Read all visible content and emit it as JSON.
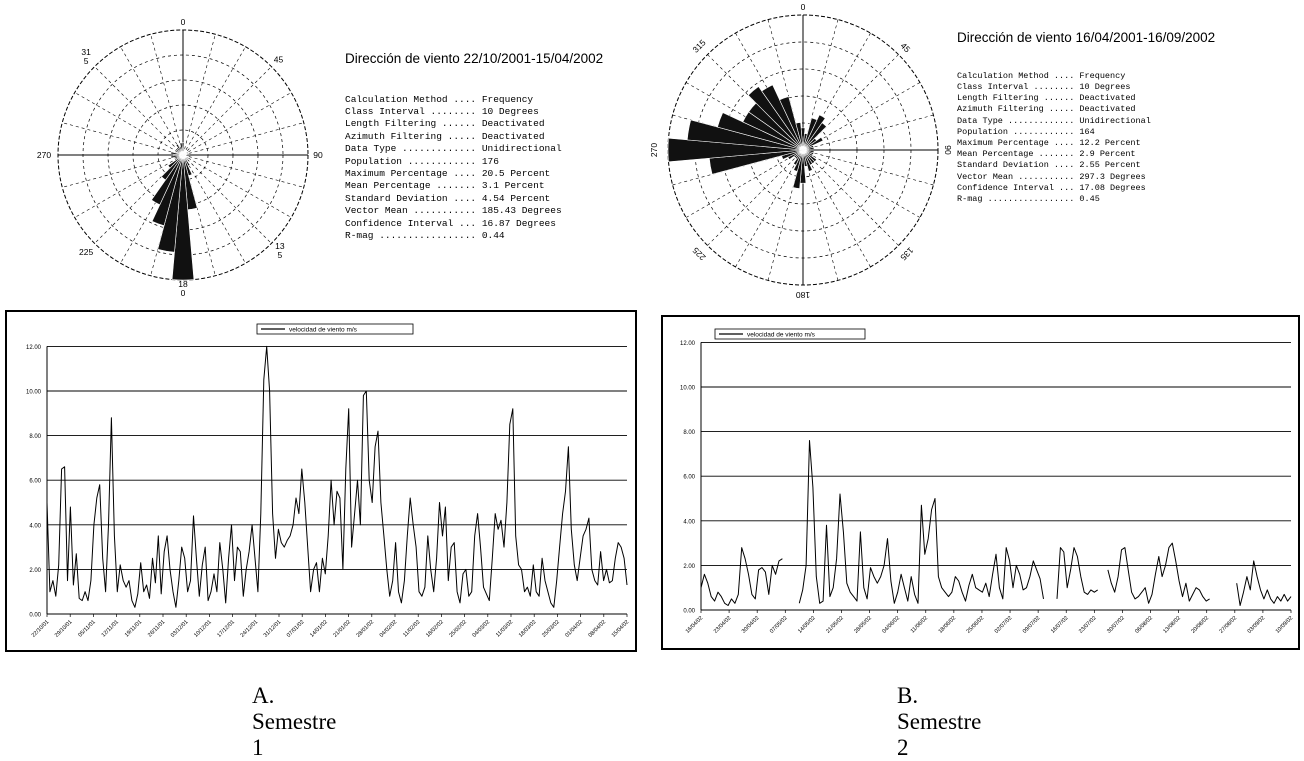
{
  "panels": [
    {
      "caption": "A. Semestre 1",
      "rose": {
        "labels": {
          "n": "0",
          "ne": "45",
          "e": "90",
          "se": "13\n5",
          "s": "18\n0",
          "sw": "225",
          "w": "270",
          "nw": "31\n5"
        },
        "label_variant": "A"
      },
      "stats": {
        "title": "Dirección de viento 22/10/2001-15/04/2002",
        "rows": [
          {
            "k": "Calculation Method ....",
            "v": "Frequency"
          },
          {
            "k": "Class Interval ........",
            "v": "10 Degrees"
          },
          {
            "k": "Length Filtering ......",
            "v": "Deactivated"
          },
          {
            "k": "Azimuth Filtering .....",
            "v": "Deactivated"
          },
          {
            "k": "Data Type .............",
            "v": "Unidirectional"
          },
          {
            "k": "Population ............",
            "v": "176"
          },
          {
            "k": "Maximum Percentage ....",
            "v": "20.5 Percent"
          },
          {
            "k": "Mean Percentage .......",
            "v": "3.1 Percent"
          },
          {
            "k": "Standard Deviation ....",
            "v": "4.54 Percent"
          },
          {
            "k": "Vector Mean ...........",
            "v": "185.43 Degrees"
          },
          {
            "k": "Confidence Interval ...",
            "v": "16.87 Degrees"
          },
          {
            "k": "R-mag .................",
            "v": "0.44"
          }
        ]
      },
      "line_chart": {
        "legend": "velocidad de viento m/s",
        "y_ticks": [
          "0.00",
          "2.00",
          "4.00",
          "6.00",
          "8.00",
          "10.00",
          "12.00"
        ],
        "x_ticks": [
          "22/10/01",
          "29/10/01",
          "05/11/01",
          "12/11/01",
          "19/11/01",
          "26/11/01",
          "03/12/01",
          "10/12/01",
          "17/12/01",
          "24/12/01",
          "31/12/01",
          "07/01/02",
          "14/01/02",
          "21/01/02",
          "28/01/02",
          "04/02/02",
          "11/02/02",
          "18/02/02",
          "25/02/02",
          "04/03/02",
          "11/03/02",
          "18/03/02",
          "25/03/02",
          "01/04/02",
          "08/04/02",
          "15/04/02"
        ]
      }
    },
    {
      "caption": "B. Semestre 2",
      "rose": {
        "labels": {
          "n": "0",
          "ne": "45",
          "e": "90",
          "se": "135",
          "s": "180",
          "sw": "225",
          "w": "270",
          "nw": "315"
        },
        "label_variant": "B"
      },
      "stats": {
        "title": "Dirección de viento 16/04/2001-16/09/2002",
        "rows": [
          {
            "k": "Calculation Method ....",
            "v": "Frequency"
          },
          {
            "k": "Class Interval ........",
            "v": "10 Degrees"
          },
          {
            "k": "Length Filtering ......",
            "v": "Deactivated"
          },
          {
            "k": "Azimuth Filtering .....",
            "v": "Deactivated"
          },
          {
            "k": "Data Type .............",
            "v": "Unidirectional"
          },
          {
            "k": "Population ............",
            "v": "164"
          },
          {
            "k": "Maximum Percentage ....",
            "v": "12.2 Percent"
          },
          {
            "k": "Mean Percentage .......",
            "v": "2.9 Percent"
          },
          {
            "k": "Standard Deviation ....",
            "v": "2.55 Percent"
          },
          {
            "k": "Vector Mean ...........",
            "v": "297.3 Degrees"
          },
          {
            "k": "Confidence Interval ...",
            "v": "17.08 Degrees"
          },
          {
            "k": "R-mag .................",
            "v": "0.45"
          }
        ]
      },
      "line_chart": {
        "legend": "velocidad de viento m/s",
        "y_ticks": [
          "0.00",
          "2.00",
          "4.00",
          "6.00",
          "8.00",
          "10.00",
          "12.00"
        ],
        "x_ticks": [
          "16/04/02",
          "23/04/02",
          "30/04/02",
          "07/05/02",
          "14/05/02",
          "21/05/02",
          "28/05/02",
          "04/06/02",
          "11/06/02",
          "18/06/02",
          "25/06/02",
          "02/07/02",
          "09/07/02",
          "16/07/02",
          "23/07/02",
          "30/07/02",
          "06/08/02",
          "13/08/02",
          "20/08/02",
          "27/08/02",
          "03/09/02",
          "10/09/02"
        ]
      }
    }
  ],
  "chart_data": [
    {
      "type": "bar",
      "subtype": "rose",
      "title": "Dirección de viento 22/10/2001-15/04/2002",
      "direction_deg": [
        0,
        10,
        20,
        30,
        40,
        50,
        60,
        70,
        80,
        90,
        100,
        110,
        120,
        130,
        140,
        150,
        160,
        170,
        180,
        190,
        200,
        210,
        220,
        230,
        240,
        250,
        260,
        270,
        280,
        290,
        300,
        310,
        320,
        330,
        340,
        350
      ],
      "values": [
        2.0,
        1.0,
        0.5,
        0.5,
        0.5,
        0.5,
        1.0,
        1.0,
        1.0,
        0.5,
        0.5,
        0.5,
        1.0,
        1.0,
        1.0,
        2.0,
        3.5,
        9.0,
        20.5,
        16.0,
        12.0,
        9.0,
        5.0,
        3.0,
        1.0,
        1.5,
        2.0,
        1.5,
        2.0,
        1.0,
        1.5,
        1.5,
        1.5,
        2.0,
        1.5,
        2.0
      ],
      "unit": "Percent",
      "rmax": 20.5
    },
    {
      "type": "bar",
      "subtype": "rose",
      "title": "Dirección de viento 16/04/2001-16/09/2002",
      "direction_deg": [
        0,
        10,
        20,
        30,
        40,
        50,
        60,
        70,
        80,
        90,
        100,
        110,
        120,
        130,
        140,
        150,
        160,
        170,
        180,
        190,
        200,
        210,
        220,
        230,
        240,
        250,
        260,
        270,
        280,
        290,
        300,
        310,
        320,
        330,
        340,
        350
      ],
      "values": [
        2.0,
        1.5,
        3.0,
        3.5,
        3.0,
        1.5,
        2.0,
        1.0,
        1.0,
        0.5,
        1.0,
        1.0,
        1.0,
        1.5,
        1.5,
        1.5,
        2.0,
        1.5,
        3.0,
        3.5,
        2.0,
        1.5,
        1.0,
        1.0,
        1.5,
        2.0,
        8.5,
        12.2,
        10.5,
        8.0,
        6.0,
        6.0,
        7.0,
        6.5,
        5.0,
        2.5
      ],
      "unit": "Percent",
      "rmax": 12.2
    },
    {
      "type": "line",
      "series": [
        {
          "name": "velocidad de viento m/s",
          "values": [
            5.0,
            1.0,
            1.5,
            0.8,
            2.2,
            6.5,
            6.6,
            1.5,
            4.8,
            1.3,
            2.7,
            0.7,
            0.6,
            1.0,
            0.6,
            1.5,
            4.0,
            5.2,
            5.8,
            2.5,
            1.0,
            4.0,
            8.8,
            3.5,
            1.0,
            2.2,
            1.5,
            1.2,
            1.5,
            0.6,
            0.3,
            0.9,
            2.3,
            1.0,
            1.3,
            0.7,
            2.5,
            1.4,
            3.5,
            0.9,
            2.8,
            3.5,
            2.0,
            1.0,
            0.3,
            1.5,
            3.0,
            2.5,
            1.0,
            1.5,
            4.4,
            2.5,
            0.8,
            2.2,
            3.0,
            0.6,
            1.0,
            1.8,
            1.0,
            3.2,
            2.0,
            0.5,
            2.5,
            4.0,
            1.5,
            3.0,
            2.8,
            0.8,
            2.0,
            2.8,
            4.0,
            2.5,
            1.0,
            4.5,
            10.5,
            12.0,
            10.0,
            4.5,
            2.5,
            3.8,
            3.2,
            3.0,
            3.3,
            3.5,
            4.0,
            5.2,
            4.5,
            6.5,
            5.0,
            3.0,
            1.0,
            2.0,
            2.3,
            1.0,
            2.5,
            1.8,
            3.5,
            6.0,
            4.0,
            5.5,
            5.2,
            2.0,
            6.5,
            9.2,
            3.0,
            4.5,
            6.0,
            4.0,
            9.8,
            10.0,
            6.0,
            5.0,
            7.5,
            8.2,
            5.0,
            3.5,
            2.0,
            0.8,
            1.5,
            3.2,
            1.0,
            0.5,
            1.5,
            3.5,
            5.2,
            4.0,
            3.0,
            1.0,
            0.8,
            1.2,
            3.5,
            2.0,
            1.0,
            2.5,
            5.0,
            3.5,
            4.8,
            1.5,
            3.0,
            3.2,
            1.0,
            0.5,
            1.8,
            2.0,
            0.8,
            1.0,
            3.5,
            4.5,
            3.0,
            1.2,
            0.9,
            0.6,
            2.5,
            4.5,
            3.8,
            4.2,
            3.0,
            5.0,
            8.5,
            9.2,
            3.5,
            2.2,
            2.0,
            1.0,
            1.2,
            0.8,
            2.2,
            1.0,
            0.8,
            2.5,
            1.5,
            1.0,
            0.5,
            0.3,
            1.5,
            3.0,
            4.5,
            5.5,
            7.5,
            3.8,
            2.2,
            1.5,
            2.5,
            3.5,
            3.8,
            4.3,
            2.0,
            1.5,
            1.3,
            2.8,
            1.5,
            2.0,
            1.4,
            1.5,
            2.5,
            3.2,
            3.0,
            2.5,
            1.3
          ]
        }
      ],
      "ylabel": "",
      "ylim": [
        0,
        12
      ],
      "x_start": "22/10/01",
      "x_end": "15/04/02",
      "legend": "top-center",
      "grid": true
    },
    {
      "type": "line",
      "series": [
        {
          "name": "velocidad de viento m/s",
          "values": [
            1.0,
            1.6,
            1.2,
            0.6,
            0.4,
            0.8,
            0.6,
            0.3,
            0.2,
            0.5,
            0.3,
            0.7,
            2.8,
            2.3,
            1.6,
            0.7,
            0.5,
            1.8,
            1.9,
            1.7,
            0.7,
            2.0,
            1.6,
            2.2,
            2.3,
            null,
            null,
            null,
            null,
            0.3,
            0.9,
            2.0,
            7.6,
            5.5,
            1.5,
            0.3,
            0.4,
            3.8,
            0.6,
            1.0,
            2.3,
            5.2,
            3.5,
            1.2,
            0.8,
            0.6,
            0.4,
            3.5,
            1.0,
            0.5,
            1.9,
            1.5,
            1.2,
            1.5,
            2.0,
            3.2,
            1.3,
            0.3,
            0.8,
            1.6,
            1.0,
            0.4,
            1.5,
            0.7,
            0.3,
            4.7,
            2.5,
            3.2,
            4.5,
            5.0,
            1.5,
            1.0,
            0.8,
            0.6,
            0.8,
            1.5,
            1.3,
            0.8,
            0.4,
            1.1,
            1.6,
            1.0,
            0.9,
            0.8,
            1.2,
            0.6,
            1.6,
            2.5,
            1.0,
            0.5,
            2.8,
            2.2,
            1.0,
            2.0,
            1.6,
            0.9,
            1.0,
            1.5,
            2.2,
            1.8,
            1.4,
            0.5,
            null,
            null,
            null,
            0.5,
            2.8,
            2.6,
            1.0,
            1.8,
            2.8,
            2.4,
            1.5,
            0.8,
            0.7,
            0.9,
            0.8,
            0.9,
            null,
            null,
            1.8,
            1.2,
            0.8,
            1.5,
            2.7,
            2.8,
            1.8,
            0.8,
            0.5,
            0.6,
            0.8,
            1.0,
            0.3,
            0.7,
            1.6,
            2.4,
            1.5,
            2.0,
            2.8,
            3.0,
            2.2,
            1.3,
            0.6,
            1.2,
            0.4,
            0.7,
            1.0,
            0.9,
            0.6,
            0.4,
            0.5,
            null,
            null,
            null,
            null,
            null,
            null,
            null,
            1.2,
            0.2,
            0.8,
            1.5,
            0.9,
            2.2,
            1.5,
            0.9,
            0.5,
            0.9,
            0.5,
            0.3,
            0.6,
            0.4,
            0.7,
            0.4,
            0.6
          ]
        }
      ],
      "ylabel": "",
      "ylim": [
        0,
        12
      ],
      "x_start": "16/04/02",
      "x_end": "10/09/02",
      "legend": "top-left",
      "grid": true
    }
  ]
}
